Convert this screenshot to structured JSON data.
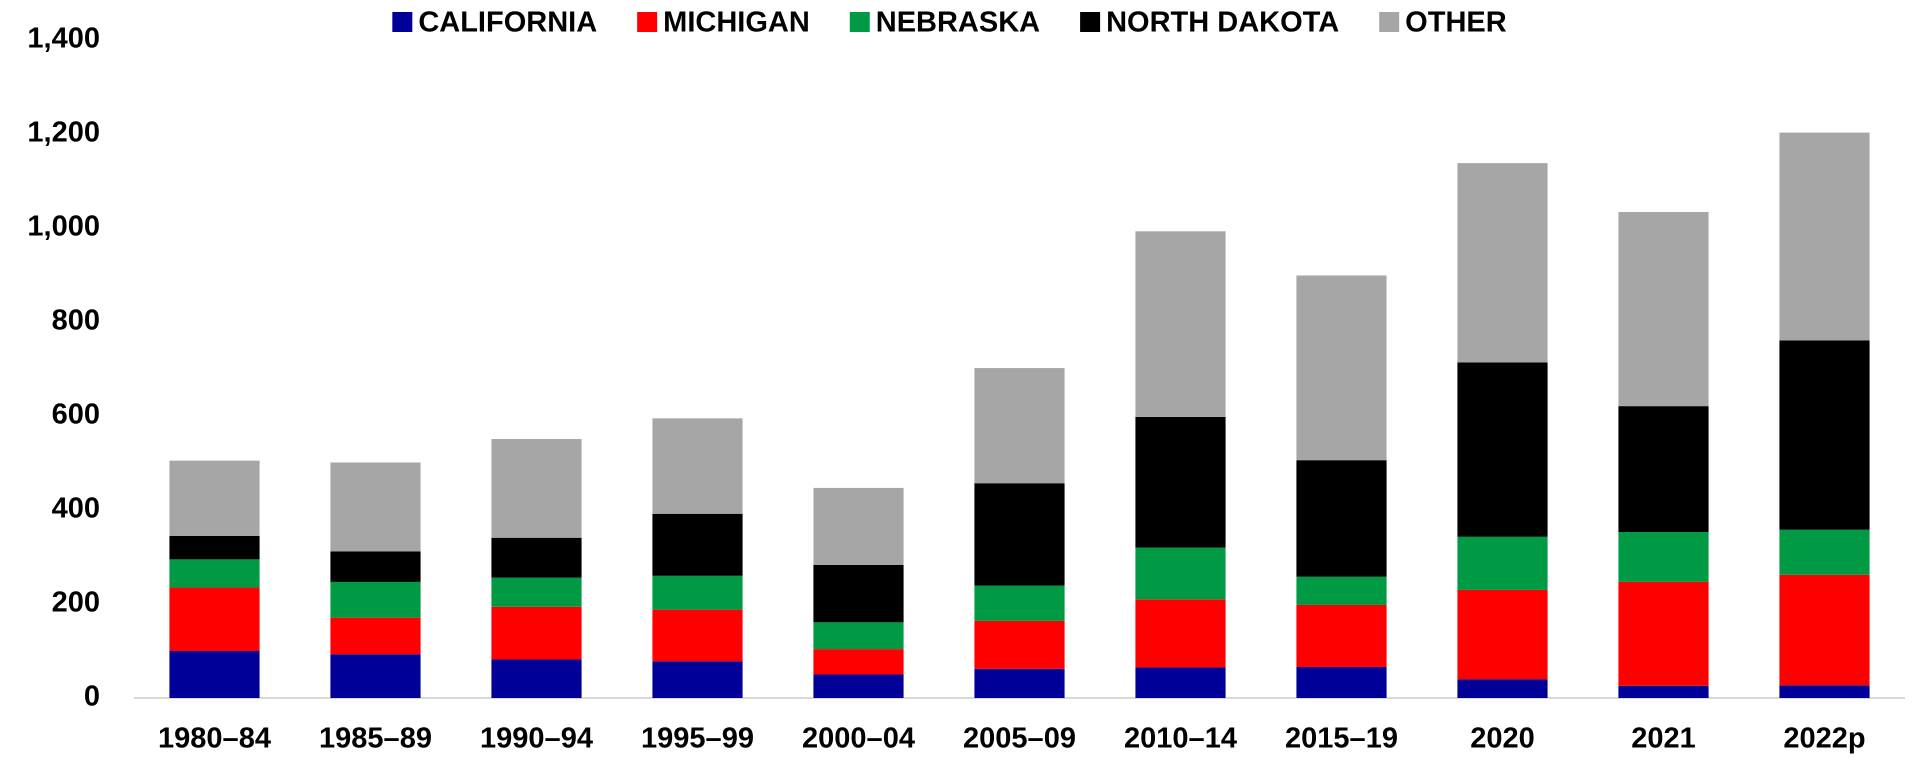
{
  "chart_data": {
    "type": "stacked_bar",
    "categories": [
      "1980–84",
      "1985–89",
      "1990–94",
      "1995–99",
      "2000–04",
      "2005–09",
      "2010–14",
      "2015–19",
      "2020",
      "2021",
      "2022p"
    ],
    "series": [
      {
        "name": "CALIFORNIA",
        "color": "#000099",
        "values": [
          100,
          93,
          82,
          78,
          50,
          62,
          65,
          66,
          40,
          26,
          27
        ]
      },
      {
        "name": "MICHIGAN",
        "color": "#ff0000",
        "values": [
          135,
          78,
          112,
          110,
          54,
          102,
          145,
          132,
          190,
          221,
          235
        ]
      },
      {
        "name": "NEBRASKA",
        "color": "#009a44",
        "values": [
          60,
          76,
          62,
          72,
          57,
          75,
          110,
          60,
          113,
          106,
          96
        ]
      },
      {
        "name": "NORTH DAKOTA",
        "color": "#000000",
        "values": [
          50,
          65,
          85,
          132,
          122,
          218,
          278,
          248,
          371,
          268,
          403
        ]
      },
      {
        "name": "OTHER",
        "color": "#a6a6a6",
        "values": [
          160,
          189,
          210,
          203,
          164,
          245,
          395,
          393,
          424,
          413,
          442
        ]
      }
    ],
    "ylim": [
      0,
      1400
    ],
    "yticks": [
      0,
      200,
      400,
      600,
      800,
      1000,
      1200,
      {
        "value": 1000,
        "label": "1,000"
      },
      {
        "value": 1200,
        "label": "1,200"
      },
      {
        "value": 1400,
        "label": "1,400"
      }
    ],
    "legend": "top",
    "grid": false
  }
}
